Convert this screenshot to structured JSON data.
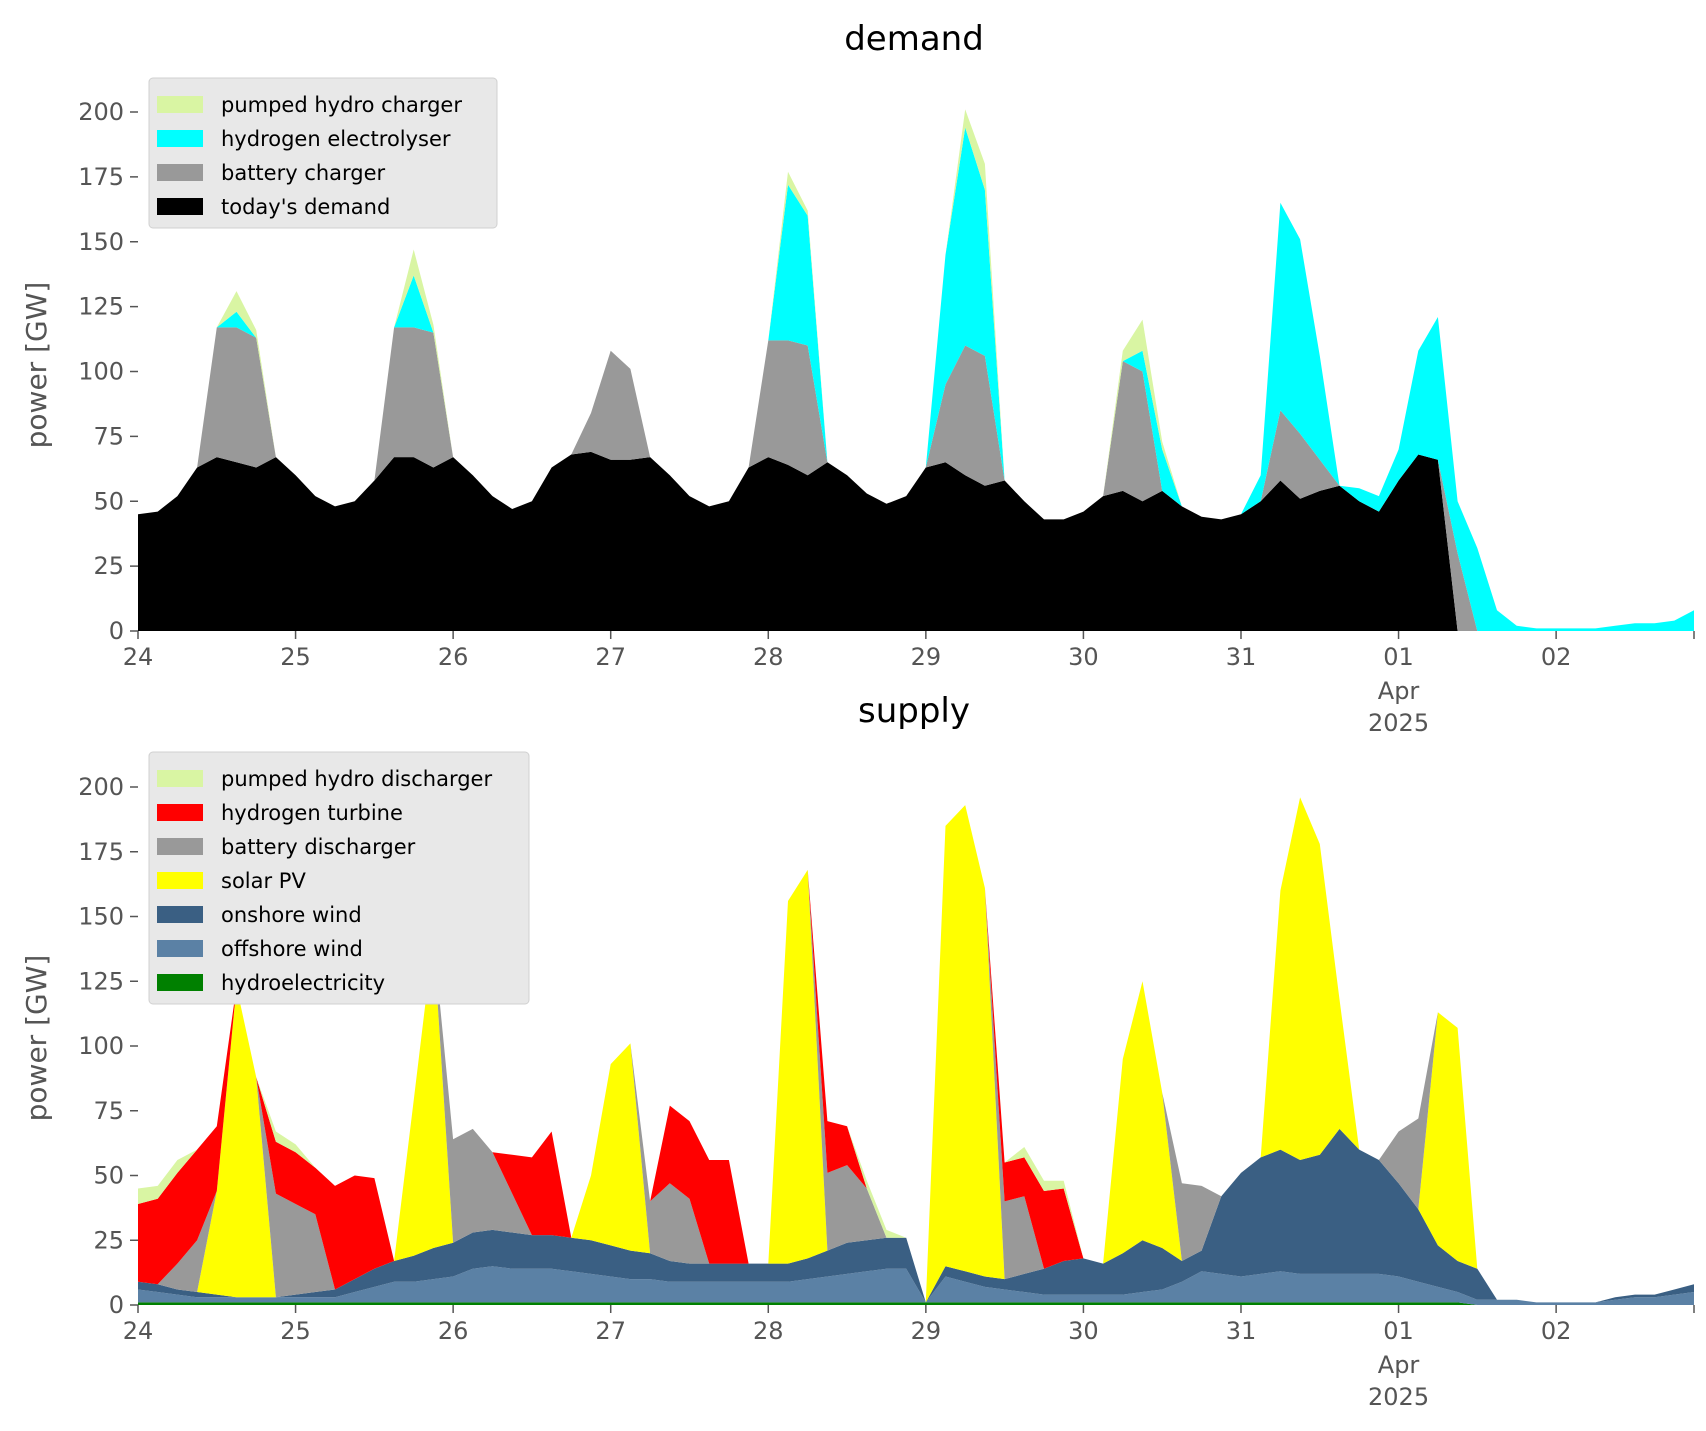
{
  "chart_data": [
    {
      "type": "area",
      "stacked": true,
      "title": "demand",
      "ylabel": "power [GW]",
      "xlabel": "",
      "ylim": [
        0,
        212
      ],
      "yticks": [
        0,
        25,
        50,
        75,
        100,
        125,
        150,
        175,
        200
      ],
      "x_start": "2025-03-24 00:00",
      "x_end": "2025-04-02 23:00",
      "x_step_hours": 3,
      "xtick_labels": [
        "24",
        "25",
        "26",
        "27",
        "28",
        "29",
        "30",
        "31",
        "01",
        "02"
      ],
      "xtick_sublabels": {
        "01": [
          "Apr",
          "2025"
        ]
      },
      "legend_position": "top-left",
      "legend_order": [
        3,
        2,
        1,
        0
      ],
      "grid": false,
      "series": [
        {
          "name": "today's demand",
          "color": "#000000",
          "values": [
            45,
            46,
            52,
            63,
            67,
            65,
            63,
            67,
            60,
            52,
            48,
            50,
            58,
            67,
            67,
            63,
            67,
            60,
            52,
            47,
            50,
            63,
            68,
            69,
            66,
            66,
            67,
            60,
            52,
            48,
            50,
            63,
            67,
            64,
            60,
            65,
            60,
            53,
            49,
            52,
            63,
            65,
            60,
            56,
            58,
            50,
            43,
            43,
            46,
            52,
            54,
            50,
            54,
            48,
            44,
            43,
            45,
            50,
            58,
            51,
            54,
            56,
            50,
            46,
            58,
            68,
            66,
            0,
            0,
            0,
            0,
            0,
            0,
            0,
            0,
            0,
            0,
            0,
            0,
            0
          ]
        },
        {
          "name": "battery charger",
          "color": "#999999",
          "values": [
            0,
            0,
            0,
            0,
            50,
            52,
            50,
            0,
            0,
            0,
            0,
            0,
            0,
            50,
            50,
            52,
            0,
            0,
            0,
            0,
            0,
            0,
            0,
            15,
            42,
            35,
            0,
            0,
            0,
            0,
            0,
            0,
            45,
            48,
            50,
            0,
            0,
            0,
            0,
            0,
            0,
            30,
            50,
            50,
            0,
            0,
            0,
            0,
            0,
            0,
            50,
            50,
            0,
            0,
            0,
            0,
            0,
            0,
            27,
            25,
            12,
            0,
            0,
            0,
            0,
            0,
            0,
            30,
            0,
            0,
            0,
            0,
            0,
            0,
            0,
            0,
            0,
            0,
            0,
            0
          ]
        },
        {
          "name": "hydrogen electrolyser",
          "color": "#00ffff",
          "values": [
            0,
            0,
            0,
            0,
            0,
            6,
            0,
            0,
            0,
            0,
            0,
            0,
            0,
            0,
            20,
            0,
            0,
            0,
            0,
            0,
            0,
            0,
            0,
            0,
            0,
            0,
            0,
            0,
            0,
            0,
            0,
            0,
            0,
            60,
            50,
            0,
            0,
            0,
            0,
            0,
            0,
            50,
            84,
            64,
            0,
            0,
            0,
            0,
            0,
            0,
            0,
            8,
            16,
            0,
            0,
            0,
            0,
            10,
            80,
            75,
            40,
            0,
            5,
            6,
            12,
            40,
            55,
            20,
            32,
            8,
            2,
            1,
            1,
            1,
            1,
            2,
            3,
            3,
            4,
            8
          ]
        },
        {
          "name": "pumped hydro charger",
          "color": "#d9f5a3",
          "values": [
            0,
            0,
            0,
            0,
            0,
            8,
            3,
            0,
            0,
            0,
            0,
            0,
            0,
            0,
            10,
            3,
            0,
            0,
            0,
            0,
            0,
            0,
            0,
            0,
            0,
            0,
            0,
            0,
            0,
            0,
            0,
            0,
            0,
            5,
            2,
            0,
            0,
            0,
            0,
            0,
            0,
            0,
            7,
            10,
            0,
            0,
            0,
            0,
            0,
            0,
            4,
            12,
            3,
            0,
            0,
            0,
            0,
            0,
            0,
            0,
            0,
            0,
            0,
            0,
            0,
            0,
            0,
            0,
            0,
            0,
            0,
            0,
            0,
            0,
            0,
            0,
            0,
            0,
            0,
            0
          ]
        }
      ]
    },
    {
      "type": "area",
      "stacked": true,
      "title": "supply",
      "ylabel": "power [GW]",
      "xlabel": "",
      "ylim": [
        0,
        212
      ],
      "yticks": [
        0,
        25,
        50,
        75,
        100,
        125,
        150,
        175,
        200
      ],
      "x_start": "2025-03-24 00:00",
      "x_end": "2025-04-02 23:00",
      "x_step_hours": 3,
      "xtick_labels": [
        "24",
        "25",
        "26",
        "27",
        "28",
        "29",
        "30",
        "31",
        "01",
        "02"
      ],
      "xtick_sublabels": {
        "01": [
          "Apr",
          "2025"
        ]
      },
      "legend_position": "top-left",
      "legend_order": [
        6,
        5,
        4,
        3,
        2,
        1,
        0
      ],
      "grid": false,
      "series": [
        {
          "name": "hydroelectricity",
          "color": "#008000",
          "values": [
            1,
            1,
            1,
            1,
            1,
            1,
            1,
            1,
            1,
            1,
            1,
            1,
            1,
            1,
            1,
            1,
            1,
            1,
            1,
            1,
            1,
            1,
            1,
            1,
            1,
            1,
            1,
            1,
            1,
            1,
            1,
            1,
            1,
            1,
            1,
            1,
            1,
            1,
            1,
            1,
            1,
            1,
            1,
            1,
            1,
            1,
            1,
            1,
            1,
            1,
            1,
            1,
            1,
            1,
            1,
            1,
            1,
            1,
            1,
            1,
            1,
            1,
            1,
            1,
            1,
            1,
            1,
            1,
            0,
            0,
            0,
            0,
            0,
            0,
            0,
            0,
            0,
            0,
            0,
            0
          ]
        },
        {
          "name": "offshore wind",
          "color": "#5b81a5",
          "values": [
            5,
            4,
            3,
            2,
            2,
            2,
            2,
            2,
            2,
            2,
            2,
            4,
            6,
            8,
            8,
            9,
            10,
            13,
            14,
            13,
            13,
            13,
            12,
            11,
            10,
            9,
            9,
            8,
            8,
            8,
            8,
            8,
            8,
            8,
            9,
            10,
            11,
            12,
            13,
            13,
            0,
            10,
            8,
            6,
            5,
            4,
            3,
            3,
            3,
            3,
            3,
            4,
            5,
            8,
            12,
            11,
            10,
            11,
            12,
            11,
            11,
            11,
            11,
            11,
            10,
            8,
            6,
            4,
            2,
            2,
            2,
            1,
            1,
            1,
            1,
            2,
            3,
            3,
            4,
            5
          ]
        },
        {
          "name": "onshore wind",
          "color": "#3a5f83",
          "values": [
            3,
            3,
            2,
            2,
            1,
            0,
            0,
            0,
            1,
            2,
            3,
            5,
            7,
            8,
            10,
            12,
            13,
            14,
            14,
            14,
            13,
            13,
            13,
            13,
            12,
            11,
            10,
            8,
            7,
            7,
            7,
            7,
            7,
            7,
            8,
            10,
            12,
            12,
            12,
            12,
            0,
            4,
            4,
            4,
            4,
            7,
            10,
            13,
            14,
            12,
            16,
            20,
            16,
            8,
            8,
            30,
            40,
            45,
            47,
            44,
            46,
            56,
            48,
            44,
            36,
            28,
            16,
            12,
            12,
            0,
            0,
            0,
            0,
            0,
            0,
            1,
            1,
            1,
            2,
            3
          ]
        },
        {
          "name": "solar PV",
          "color": "#ffff00",
          "values": [
            0,
            0,
            0,
            0,
            40,
            120,
            85,
            0,
            0,
            0,
            0,
            0,
            0,
            0,
            60,
            120,
            0,
            0,
            0,
            0,
            0,
            0,
            0,
            25,
            70,
            80,
            0,
            0,
            0,
            0,
            0,
            0,
            0,
            140,
            150,
            0,
            0,
            0,
            0,
            0,
            0,
            170,
            180,
            150,
            0,
            0,
            0,
            0,
            0,
            0,
            75,
            100,
            60,
            0,
            0,
            0,
            0,
            0,
            100,
            140,
            120,
            50,
            0,
            0,
            0,
            0,
            90,
            90,
            0,
            0,
            0,
            0,
            0,
            0,
            0,
            0,
            0,
            0,
            0,
            0
          ]
        },
        {
          "name": "battery discharger",
          "color": "#999999",
          "values": [
            0,
            0,
            10,
            20,
            0,
            0,
            0,
            40,
            35,
            30,
            0,
            0,
            0,
            0,
            0,
            0,
            40,
            40,
            30,
            15,
            0,
            0,
            0,
            0,
            0,
            0,
            20,
            30,
            25,
            0,
            0,
            0,
            0,
            0,
            0,
            30,
            30,
            20,
            0,
            0,
            0,
            0,
            0,
            0,
            30,
            30,
            0,
            0,
            0,
            0,
            0,
            0,
            0,
            30,
            25,
            0,
            0,
            0,
            0,
            0,
            0,
            0,
            0,
            0,
            20,
            35,
            0,
            0,
            0,
            0,
            0,
            0,
            0,
            0,
            0,
            0,
            0,
            0,
            0,
            0
          ]
        },
        {
          "name": "hydrogen turbine",
          "color": "#ff0000",
          "values": [
            30,
            33,
            35,
            35,
            25,
            0,
            0,
            20,
            20,
            18,
            40,
            40,
            35,
            0,
            0,
            0,
            0,
            0,
            0,
            15,
            30,
            40,
            0,
            0,
            0,
            0,
            0,
            30,
            30,
            40,
            40,
            0,
            0,
            0,
            0,
            20,
            15,
            0,
            0,
            0,
            0,
            0,
            0,
            0,
            15,
            15,
            30,
            28,
            0,
            0,
            0,
            0,
            0,
            0,
            0,
            0,
            0,
            0,
            0,
            0,
            0,
            0,
            0,
            0,
            0,
            0,
            0,
            0,
            0,
            0,
            0,
            0,
            0,
            0,
            0,
            0,
            0,
            0,
            0,
            0
          ]
        },
        {
          "name": "pumped hydro discharger",
          "color": "#d9f5a3",
          "values": [
            6,
            5,
            5,
            0,
            0,
            0,
            0,
            4,
            3,
            0,
            0,
            0,
            0,
            0,
            0,
            0,
            0,
            0,
            0,
            0,
            0,
            0,
            0,
            0,
            0,
            0,
            0,
            0,
            0,
            0,
            0,
            0,
            0,
            0,
            0,
            0,
            0,
            3,
            3,
            0,
            0,
            0,
            0,
            0,
            0,
            4,
            4,
            3,
            0,
            0,
            0,
            0,
            0,
            0,
            0,
            0,
            0,
            0,
            0,
            0,
            0,
            0,
            0,
            0,
            0,
            0,
            0,
            0,
            0,
            0,
            0,
            0,
            0,
            0,
            0,
            0,
            0,
            0,
            0,
            0
          ]
        }
      ]
    }
  ]
}
